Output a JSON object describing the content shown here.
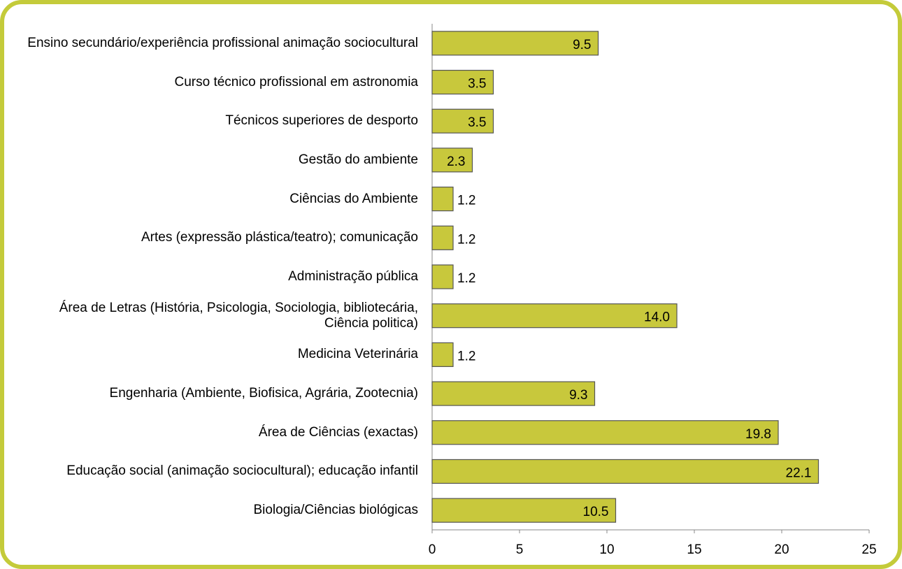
{
  "chart_data": {
    "type": "barh",
    "categories": [
      "Ensino secundário/experiência profissional animação sociocultural",
      "Curso técnico profissional em astronomia",
      "Técnicos superiores de desporto",
      "Gestão do ambiente",
      "Ciências do Ambiente",
      "Artes (expressão plástica/teatro); comunicação",
      "Administração pública",
      "Área de Letras (História, Psicologia, Sociologia, bibliotecária, Ciência politica)",
      "Medicina Veterinária",
      "Engenharia (Ambiente, Biofisica, Agrária, Zootecnia)",
      "Área de Ciências (exactas)",
      "Educação social (animação sociocultural); educação infantil",
      "Biologia/Ciências biológicas"
    ],
    "values": [
      9.5,
      3.5,
      3.5,
      2.3,
      1.2,
      1.2,
      1.2,
      14.0,
      1.2,
      9.3,
      19.8,
      22.1,
      10.5
    ],
    "value_labels": [
      "9.5",
      "3.5",
      "3.5",
      "2.3",
      "1.2",
      "1.2",
      "1.2",
      "14.0",
      "1.2",
      "9.3",
      "19.8",
      "22.1",
      "10.5"
    ],
    "color": "#c8c83c",
    "xlim": [
      0,
      25
    ],
    "xticks": [
      0,
      5,
      10,
      15,
      20,
      25
    ],
    "grid": false
  }
}
